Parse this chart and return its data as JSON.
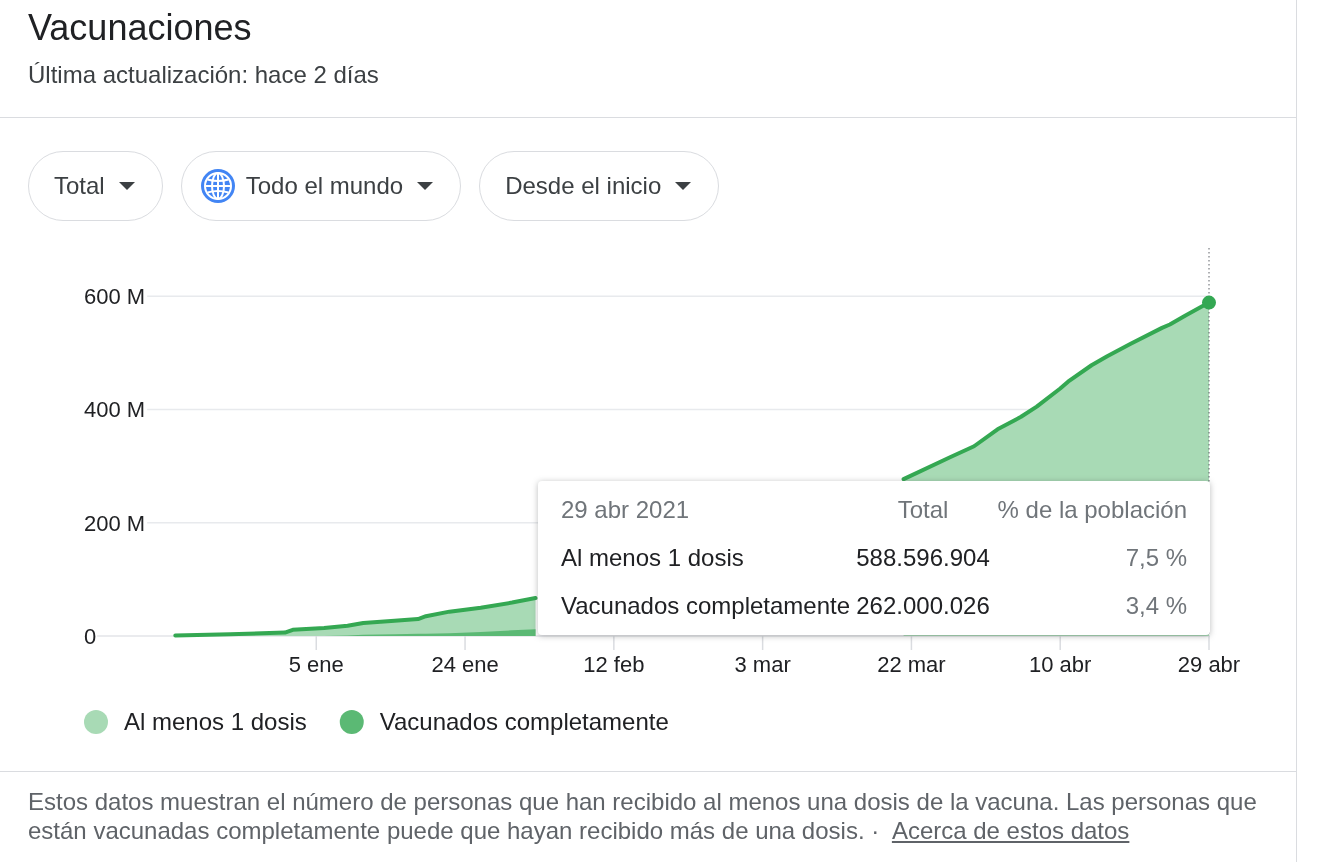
{
  "chart_data": {
    "type": "area",
    "title": "Vacunaciones",
    "subtitle": "Última actualización: hace 2 días",
    "x": [
      "2020-12-18",
      "2020-12-25",
      "2021-01-01",
      "2021-01-02",
      "2021-01-06",
      "2021-01-09",
      "2021-01-11",
      "2021-01-15",
      "2021-01-18",
      "2021-01-19",
      "2021-01-22",
      "2021-01-26",
      "2021-01-30",
      "2021-02-02",
      "2021-03-01",
      "2021-03-21",
      "2021-03-27",
      "2021-03-30",
      "2021-04-02",
      "2021-04-05",
      "2021-04-07",
      "2021-04-10",
      "2021-04-11",
      "2021-04-14",
      "2021-04-16",
      "2021-04-19",
      "2021-04-23",
      "2021-04-24",
      "2021-04-26",
      "2021-04-29"
    ],
    "series": [
      {
        "name": "Al menos 1 dosis",
        "color": "#a8dab5",
        "values": [
          1,
          3,
          6,
          11,
          14,
          18,
          23,
          27,
          30,
          35,
          43,
          50,
          59,
          67,
          null,
          277,
          316,
          335,
          365,
          387,
          405,
          437,
          449,
          478,
          494,
          516,
          544,
          550,
          566,
          588.596904
        ]
      },
      {
        "name": "Vacunados completamente",
        "color": "#5bb974",
        "values": [
          0,
          0,
          0,
          0,
          0,
          1,
          2,
          3,
          4,
          4,
          5,
          7,
          10,
          12,
          null,
          null,
          null,
          null,
          null,
          null,
          null,
          null,
          null,
          null,
          null,
          null,
          null,
          null,
          null,
          null
        ]
      },
      {
        "type": "scatter",
        "x": [
          "2021-04-29"
        ],
        "values": [
          588.596904
        ],
        "color": "#34a853",
        "marker": "circle"
      }
    ],
    "xlim": [
      "2020-12-08",
      "2021-04-29"
    ],
    "xticks": [
      {
        "value": "2021-01-05",
        "label": "5 ene"
      },
      {
        "value": "2021-01-24",
        "label": "24 ene"
      },
      {
        "value": "2021-02-12",
        "label": "12 feb"
      },
      {
        "value": "2021-03-03",
        "label": "3 mar"
      },
      {
        "value": "2021-03-22",
        "label": "22 mar"
      },
      {
        "value": "2021-04-10",
        "label": "10 abr"
      },
      {
        "value": "2021-04-29",
        "label": "29 abr"
      }
    ],
    "ylim": [
      0,
      685
    ],
    "yticks": [
      0,
      {
        "value": 200,
        "label": "200 M"
      },
      {
        "value": 400,
        "label": "400 M"
      },
      {
        "value": 600,
        "label": "600 M"
      }
    ],
    "grid": "y",
    "legend": "bottom",
    "ref_lines": [
      {
        "axis": "x",
        "value": "2021-04-29",
        "color": "#5f6368",
        "line_style": "dotted"
      }
    ],
    "annotations": [
      "Total",
      "Todo el mundo",
      "Desde el inicio",
      "29 abr 2021",
      "Total",
      "% de la población",
      "588.596.904",
      "7,5 %",
      "262.000.026",
      "3,4 %",
      "Estos datos muestran el número de personas que han recibido al menos una dosis de la vacuna. Las personas que están vacunadas completamente puede que hayan recibido más de una dosis. ·",
      "Acerca de estos datos"
    ]
  }
}
